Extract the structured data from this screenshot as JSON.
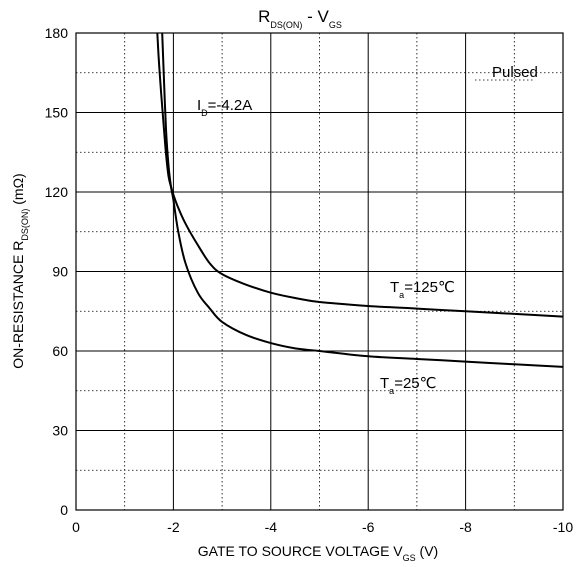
{
  "chart_data": {
    "type": "line",
    "title": {
      "main": "R",
      "main_sub": "DS(ON)",
      "sep": " - V",
      "sep_sub": "GS"
    },
    "xlabel": {
      "main": "GATE TO SOURCE VOLTAGE V",
      "sub": "GS",
      "unit": " (V)"
    },
    "ylabel": {
      "main": "ON-RESISTANCE R",
      "sub": "DS(ON)",
      "unit": " (mΩ)"
    },
    "xlim": [
      0,
      -10
    ],
    "ylim": [
      0,
      180
    ],
    "x_ticks": [
      0,
      -2,
      -4,
      -6,
      -8,
      -10
    ],
    "x_tick_labels": [
      "0",
      "-2",
      "-4",
      "-6",
      "-8",
      "-10"
    ],
    "y_ticks": [
      0,
      30,
      60,
      90,
      120,
      150,
      180
    ],
    "y_tick_labels": [
      "0",
      "30",
      "60",
      "90",
      "120",
      "150",
      "180"
    ],
    "grid": {
      "major": true,
      "minor_dotted": true
    },
    "annotations": {
      "pulsed": "Pulsed",
      "id": {
        "main": "I",
        "sub": "D",
        "rest": "=-4.2A"
      }
    },
    "series": [
      {
        "name": {
          "main": "T",
          "sub": "a",
          "rest": "=125℃"
        },
        "x": [
          -1.67,
          -1.7,
          -1.75,
          -1.8,
          -1.85,
          -1.9,
          -1.95,
          -2.0,
          -2.1,
          -2.25,
          -2.5,
          -2.75,
          -3.0,
          -3.5,
          -4.0,
          -4.5,
          -5.0,
          -6.0,
          -7.0,
          -8.0,
          -9.0,
          -10.0
        ],
        "values": [
          180,
          170,
          157,
          145,
          134,
          126,
          122,
          119,
          114,
          108,
          100,
          93,
          89,
          85,
          82,
          80,
          78.5,
          77,
          76,
          75,
          74,
          73
        ]
      },
      {
        "name": {
          "main": "T",
          "sub": "a",
          "rest": "=25℃"
        },
        "x": [
          -1.77,
          -1.8,
          -1.85,
          -1.9,
          -1.95,
          -2.0,
          -2.1,
          -2.25,
          -2.5,
          -2.75,
          -3.0,
          -3.5,
          -4.0,
          -4.5,
          -5.0,
          -6.0,
          -7.0,
          -8.0,
          -9.0,
          -10.0
        ],
        "values": [
          180,
          165,
          143,
          130,
          122,
          117,
          105,
          93,
          82,
          76,
          71,
          66,
          63,
          61,
          60,
          58,
          57,
          56,
          55,
          54
        ]
      }
    ]
  }
}
